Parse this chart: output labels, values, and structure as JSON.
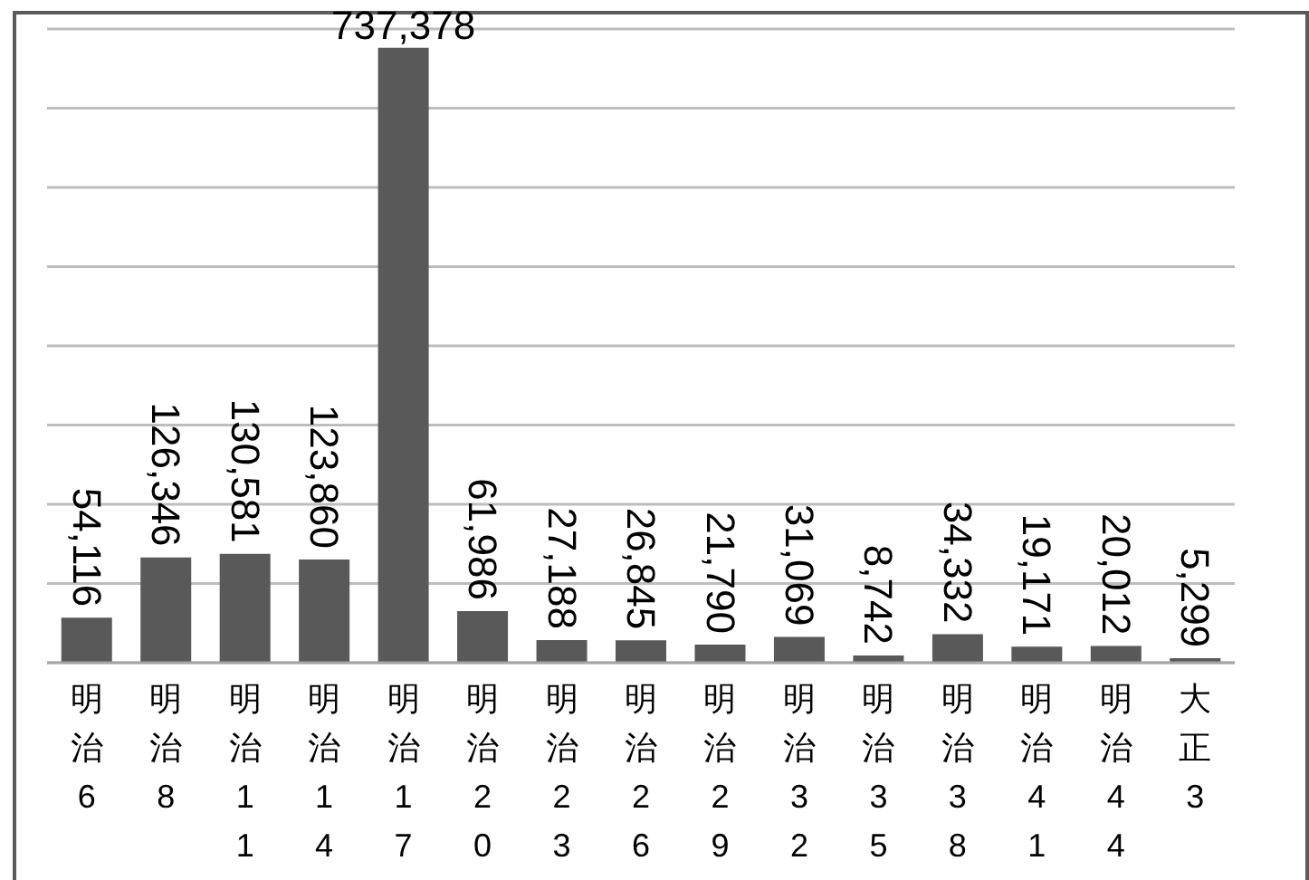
{
  "chart_data": {
    "type": "bar",
    "categories": [
      "明治6",
      "明治8",
      "明治11",
      "明治14",
      "明治17",
      "明治20",
      "明治23",
      "明治26",
      "明治29",
      "明治32",
      "明治35",
      "明治38",
      "明治41",
      "明治44",
      "大正3"
    ],
    "values": [
      54116,
      126346,
      130581,
      123860,
      737378,
      61986,
      27188,
      26845,
      21790,
      31069,
      8742,
      34332,
      19171,
      20012,
      5299
    ],
    "value_labels": [
      "54,116",
      "126,346",
      "130,581",
      "123,860",
      "737,378",
      "61,986",
      "27,188",
      "26,845",
      "21,790",
      "31,069",
      "8,742",
      "34,332",
      "19,171",
      "20,012",
      "5,299"
    ],
    "color": "#595959",
    "grid": "y",
    "tick_labels": "x"
  }
}
